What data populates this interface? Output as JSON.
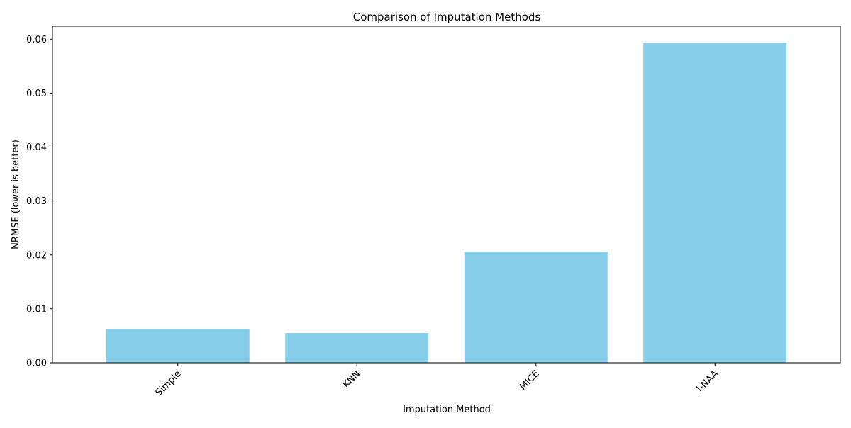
{
  "chart_data": {
    "type": "bar",
    "title": "Comparison of Imputation Methods",
    "xlabel": "Imputation Method",
    "ylabel": "NRMSE (lower is better)",
    "categories": [
      "Simple",
      "KNN",
      "MICE",
      "I-NAA"
    ],
    "values": [
      0.0063,
      0.0055,
      0.0206,
      0.0593
    ],
    "ylim": [
      0,
      0.0624
    ],
    "yticks": [
      "0.00",
      "0.01",
      "0.02",
      "0.03",
      "0.04",
      "0.05",
      "0.06"
    ],
    "ytick_values": [
      0,
      0.01,
      0.02,
      0.03,
      0.04,
      0.05,
      0.06
    ],
    "bar_color": "#87CEEB",
    "grid": false,
    "legend": "none"
  }
}
